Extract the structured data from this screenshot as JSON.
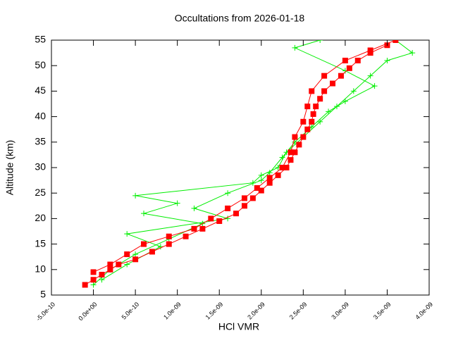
{
  "chart_data": {
    "type": "scatter",
    "title": "Occultations from 2026-01-18",
    "x_label": "HCl VMR",
    "y_label": "Altitude (km)",
    "xlim": [
      -5e-10,
      4e-09
    ],
    "ylim": [
      5,
      55
    ],
    "xticks": [
      {
        "value": -5e-10,
        "label": "-5.0e-10"
      },
      {
        "value": 0,
        "label": "0.0e+00"
      },
      {
        "value": 5e-10,
        "label": "5.0e-10"
      },
      {
        "value": 1e-09,
        "label": "1.0e-09"
      },
      {
        "value": 1.5e-09,
        "label": "1.5e-09"
      },
      {
        "value": 2e-09,
        "label": "2.0e-09"
      },
      {
        "value": 2.5e-09,
        "label": "2.5e-09"
      },
      {
        "value": 3e-09,
        "label": "3.0e-09"
      },
      {
        "value": 3.5e-09,
        "label": "3.5e-09"
      },
      {
        "value": 4e-09,
        "label": "4.0e-09"
      }
    ],
    "yticks": [
      5,
      10,
      15,
      20,
      25,
      30,
      35,
      40,
      45,
      50,
      55
    ],
    "series": [
      {
        "color": "#00ee00",
        "marker": "cross",
        "x": [
          0,
          2e-10,
          5e-10,
          9e-10,
          1.3e-09,
          6e-10,
          1e-09,
          5e-10,
          1.9e-09,
          2e-09,
          2.2e-09,
          2.3e-09,
          2.5e-09,
          2.7e-09,
          2.9e-09,
          3.1e-09,
          3.3e-09,
          3.5e-09,
          3.8e-09,
          3.6e-09
        ],
        "values": [
          7,
          10,
          13,
          16,
          19,
          21,
          23,
          24.5,
          27,
          28.5,
          30,
          33,
          36,
          39,
          42,
          45,
          48,
          51,
          52.5,
          55
        ]
      },
      {
        "color": "#00ee00",
        "marker": "cross",
        "x": [
          1e-10,
          4e-10,
          8e-10,
          4e-10,
          1.6e-09,
          1.2e-09,
          1.6e-09,
          2e-09,
          2.1e-09,
          2.25e-09,
          2.4e-09,
          2.6e-09,
          2.8e-09,
          3e-09,
          3.35e-09,
          3e-09,
          2.4e-09,
          2.7e-09
        ],
        "values": [
          8,
          11,
          14.5,
          17,
          20,
          22,
          25,
          27.5,
          29,
          32,
          35,
          38,
          41,
          43,
          46,
          49,
          53.5,
          55
        ]
      },
      {
        "color": "#ff0000",
        "marker": "square",
        "x": [
          -1e-10,
          0,
          1e-10,
          2e-10,
          3e-10,
          5e-10,
          7e-10,
          9e-10,
          1.1e-09,
          1.3e-09,
          1.5e-09,
          1.7e-09,
          1.8e-09,
          1.9e-09,
          2e-09,
          2.1e-09,
          2.2e-09,
          2.3e-09,
          2.35e-09,
          2.4e-09,
          2.45e-09,
          2.5e-09,
          2.55e-09,
          2.6e-09,
          2.62e-09,
          2.65e-09,
          2.7e-09,
          2.75e-09,
          2.85e-09,
          2.95e-09,
          3.05e-09,
          3.15e-09,
          3.3e-09,
          3.5e-09
        ],
        "values": [
          7,
          8,
          9,
          10,
          11,
          12,
          13.5,
          15,
          16.5,
          18,
          19.5,
          21,
          22.5,
          24,
          25.5,
          27,
          28.5,
          30,
          31.5,
          33,
          34.5,
          36,
          37.5,
          39,
          40.5,
          42,
          43.5,
          45,
          46.5,
          48,
          49.5,
          51,
          52.5,
          54
        ]
      },
      {
        "color": "#ff0000",
        "marker": "square",
        "x": [
          0,
          2e-10,
          4e-10,
          6e-10,
          9e-10,
          1.2e-09,
          1.4e-09,
          1.6e-09,
          1.8e-09,
          1.95e-09,
          2.1e-09,
          2.25e-09,
          2.35e-09,
          2.4e-09,
          2.5e-09,
          2.55e-09,
          2.6e-09,
          2.75e-09,
          3e-09,
          3.3e-09,
          3.6e-09
        ],
        "values": [
          9.5,
          11,
          13,
          15,
          16.5,
          18,
          20,
          22,
          24,
          26,
          28,
          30,
          33,
          36,
          39,
          42,
          45,
          48,
          51,
          53,
          55
        ]
      }
    ]
  }
}
